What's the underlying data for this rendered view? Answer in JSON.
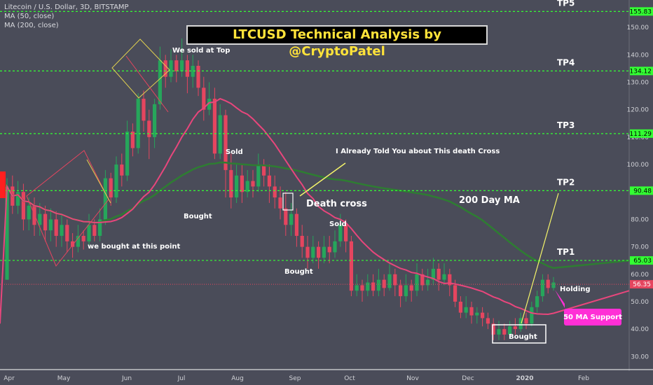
{
  "legend": {
    "symbol": "Litecoin / U.S. Dollar, 3D, BITSTAMP",
    "ma50": "MA (50, close)",
    "ma200": "MA (200, close)"
  },
  "title": "LTCUSD Technical Analysis by @CryptoPatel",
  "colors": {
    "background": "#4a4c59",
    "up": "#26a65b",
    "down": "#e5455f",
    "ma50": "#e8467c",
    "ma200": "#2e7d32",
    "target": "#33ff33",
    "arrow_yellow": "#f5f56a",
    "badge": "#ff2fd6"
  },
  "chart_data": {
    "type": "candlestick",
    "ylim": [
      26,
      160
    ],
    "y_ticks": [
      "30.00",
      "40.00",
      "50.00",
      "60.00",
      "70.00",
      "80.00",
      "90.00",
      "100.00",
      "110.00",
      "120.00",
      "130.00",
      "140.00",
      "150.00"
    ],
    "x_ticks": [
      "Apr",
      "May",
      "Jun",
      "Jul",
      "Aug",
      "Sep",
      "Oct",
      "Nov",
      "Dec",
      "2020",
      "Feb"
    ],
    "current_price": "56.35",
    "targets": [
      {
        "name": "TP5",
        "value": 155.83,
        "label": "155.83"
      },
      {
        "name": "TP4",
        "value": 134.12,
        "label": "134.12"
      },
      {
        "name": "TP3",
        "value": 111.29,
        "label": "111.29"
      },
      {
        "name": "TP2",
        "value": 90.48,
        "label": "90.48"
      },
      {
        "name": "TP1",
        "value": 65.03,
        "label": "65.03"
      }
    ],
    "candles": [
      [
        58,
        92,
        95,
        58
      ],
      [
        92,
        85,
        96,
        82
      ],
      [
        85,
        90,
        94,
        82
      ],
      [
        90,
        80,
        93,
        76
      ],
      [
        80,
        85,
        88,
        76
      ],
      [
        85,
        78,
        88,
        74
      ],
      [
        78,
        82,
        86,
        74
      ],
      [
        82,
        76,
        85,
        72
      ],
      [
        76,
        80,
        84,
        72
      ],
      [
        80,
        74,
        83,
        70
      ],
      [
        74,
        78,
        82,
        70
      ],
      [
        78,
        72,
        80,
        68
      ],
      [
        72,
        70,
        75,
        66
      ],
      [
        70,
        74,
        78,
        68
      ],
      [
        74,
        72,
        76,
        69
      ],
      [
        72,
        78,
        82,
        70
      ],
      [
        78,
        74,
        80,
        72
      ],
      [
        74,
        80,
        84,
        72
      ],
      [
        80,
        95,
        98,
        78
      ],
      [
        95,
        88,
        97,
        85
      ],
      [
        88,
        100,
        103,
        86
      ],
      [
        100,
        96,
        104,
        92
      ],
      [
        96,
        112,
        116,
        94
      ],
      [
        112,
        106,
        115,
        103
      ],
      [
        106,
        124,
        126,
        104
      ],
      [
        124,
        116,
        127,
        112
      ],
      [
        116,
        110,
        120,
        102
      ],
      [
        110,
        122,
        124,
        106
      ],
      [
        122,
        138,
        143,
        120
      ],
      [
        138,
        132,
        140,
        128
      ],
      [
        132,
        138,
        142,
        130
      ],
      [
        138,
        134,
        140,
        130
      ],
      [
        134,
        138,
        146,
        132
      ],
      [
        138,
        132,
        140,
        126
      ],
      [
        132,
        136,
        140,
        128
      ],
      [
        136,
        128,
        138,
        125
      ],
      [
        128,
        120,
        132,
        116
      ],
      [
        120,
        124,
        130,
        118
      ],
      [
        124,
        104,
        128,
        102
      ],
      [
        104,
        118,
        122,
        102
      ],
      [
        118,
        98,
        120,
        88
      ],
      [
        98,
        88,
        104,
        84
      ],
      [
        88,
        96,
        100,
        86
      ],
      [
        96,
        90,
        100,
        86
      ],
      [
        90,
        94,
        98,
        88
      ],
      [
        94,
        92,
        98,
        88
      ],
      [
        92,
        100,
        104,
        90
      ],
      [
        100,
        96,
        102,
        92
      ],
      [
        96,
        92,
        100,
        86
      ],
      [
        92,
        88,
        96,
        84
      ],
      [
        88,
        84,
        92,
        80
      ],
      [
        84,
        78,
        90,
        74
      ],
      [
        78,
        82,
        86,
        74
      ],
      [
        82,
        74,
        84,
        70
      ],
      [
        74,
        70,
        78,
        66
      ],
      [
        70,
        66,
        74,
        62
      ],
      [
        66,
        70,
        74,
        64
      ],
      [
        70,
        66,
        72,
        62
      ],
      [
        66,
        70,
        74,
        64
      ],
      [
        70,
        68,
        74,
        64
      ],
      [
        68,
        72,
        76,
        66
      ],
      [
        72,
        78,
        82,
        70
      ],
      [
        78,
        72,
        80,
        68
      ],
      [
        72,
        54,
        74,
        52
      ],
      [
        54,
        56,
        60,
        52
      ],
      [
        56,
        54,
        58,
        50
      ],
      [
        54,
        57,
        60,
        52
      ],
      [
        57,
        54,
        60,
        52
      ],
      [
        54,
        58,
        62,
        52
      ],
      [
        58,
        55,
        60,
        52
      ],
      [
        55,
        60,
        64,
        54
      ],
      [
        60,
        56,
        62,
        52
      ],
      [
        56,
        52,
        58,
        48
      ],
      [
        52,
        56,
        60,
        50
      ],
      [
        56,
        54,
        58,
        50
      ],
      [
        54,
        60,
        64,
        52
      ],
      [
        60,
        56,
        62,
        54
      ],
      [
        56,
        58,
        62,
        54
      ],
      [
        58,
        62,
        66,
        56
      ],
      [
        62,
        58,
        64,
        54
      ],
      [
        58,
        60,
        64,
        56
      ],
      [
        60,
        56,
        62,
        52
      ],
      [
        56,
        50,
        58,
        48
      ],
      [
        50,
        46,
        52,
        44
      ],
      [
        46,
        48,
        52,
        44
      ],
      [
        48,
        45,
        50,
        42
      ],
      [
        45,
        46,
        48,
        42
      ],
      [
        46,
        44,
        48,
        41
      ],
      [
        44,
        42,
        46,
        40
      ],
      [
        42,
        38,
        44,
        36
      ],
      [
        38,
        40,
        43,
        36
      ],
      [
        40,
        38,
        42,
        36
      ],
      [
        38,
        41,
        43,
        37
      ],
      [
        41,
        40,
        44,
        38
      ],
      [
        40,
        44,
        46,
        39
      ],
      [
        44,
        42,
        46,
        40
      ],
      [
        42,
        48,
        50,
        41
      ],
      [
        48,
        52,
        54,
        46
      ],
      [
        52,
        58,
        60,
        50
      ],
      [
        58,
        55,
        60,
        53
      ],
      [
        55,
        57,
        59,
        54
      ]
    ],
    "annotations": {
      "sold_top": "We sold at Top",
      "sold1": "Sold",
      "bought1": "Bought",
      "death_cross_note": "I Already Told You about This death Cross",
      "death_cross": "Death cross",
      "sold2": "Sold",
      "bought2": "Bought",
      "bought_at_point": "we bought at this point",
      "ma200_label": "200 Day MA",
      "holding": "Holding",
      "bought3": "Bought",
      "ma50_support": "50 MA Support"
    }
  }
}
